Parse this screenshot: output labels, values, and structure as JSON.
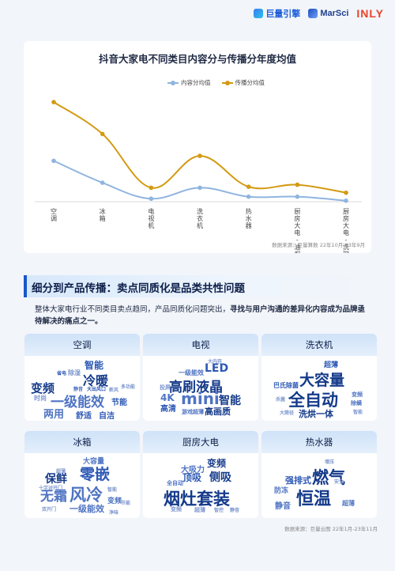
{
  "logos": {
    "juliang": "巨量引擎",
    "marsci": "MarSci",
    "inly": "INLY"
  },
  "chart_data": {
    "type": "line",
    "title": "抖音大家电不同类目内容分与传播分年度均值",
    "categories": [
      "空调",
      "冰箱",
      "电视机",
      "洗衣机",
      "热水器",
      "厨房大电-油烟机",
      "厨房大电-洗碗机"
    ],
    "category_labels": [
      [
        "空",
        "调"
      ],
      [
        "冰",
        "箱"
      ],
      [
        "电",
        "视",
        "机"
      ],
      [
        "洗",
        "衣",
        "机"
      ],
      [
        "热",
        "水",
        "器"
      ],
      [
        "厨",
        "房",
        "大",
        "电",
        "-",
        "油",
        "烟",
        "机"
      ],
      [
        "厨",
        "房",
        "大",
        "电",
        "-",
        "洗",
        "碗",
        "机"
      ]
    ],
    "series": [
      {
        "name": "内容分均值",
        "color": "#8fb4e0",
        "values": [
          41,
          19,
          3,
          14,
          5,
          5,
          1
        ]
      },
      {
        "name": "传播分均值",
        "color": "#d39a12",
        "values": [
          100,
          68,
          14,
          46,
          15,
          17,
          9
        ]
      }
    ],
    "ylim": [
      0,
      112
    ],
    "grid": false,
    "legend": "top-center",
    "source": "数据来源：巨量算数 22年10月-23年9月"
  },
  "section": {
    "title": "细分到产品传播：卖点同质化是品类共性问题",
    "desc_normal": "整体大家电行业不同类目卖点趋同，产品同质化问题突出，",
    "desc_bold": "寻找与用户沟通的差异化内容成为品牌亟待解决的痛点之一。"
  },
  "categories": [
    {
      "name": "空调",
      "words": [
        "智能",
        "冷暖",
        "变频",
        "一级能效",
        "两用",
        "舒适",
        "自洁",
        "节能",
        "除湿",
        "大出风口",
        "新风",
        "省电",
        "时尚",
        "静音",
        "多功能"
      ]
    },
    {
      "name": "电视",
      "words": [
        "LED",
        "一级能效",
        "高刷液晶",
        "mini",
        "4K",
        "智能",
        "高清",
        "游戏",
        "超薄",
        "高画质",
        "投屏",
        "大内存"
      ]
    },
    {
      "name": "洗衣机",
      "words": [
        "超薄",
        "大容量",
        "巴氏除菌",
        "全自动",
        "洗烘一体",
        "变频",
        "大筒径",
        "除螨",
        "智能",
        "杀菌"
      ]
    },
    {
      "name": "冰箱",
      "words": [
        "大容量",
        "保鲜",
        "零嵌",
        "无霜",
        "风冷",
        "一级能效",
        "十字对开门",
        "超薄",
        "智能",
        "变频",
        "节能",
        "双开门",
        "净味"
      ]
    },
    {
      "name": "厨房大电",
      "words": [
        "变频",
        "大吸力",
        "顶吸",
        "侧吸",
        "全自动",
        "烟灶套装",
        "变频",
        "超薄",
        "智控",
        "静音"
      ]
    },
    {
      "name": "热水器",
      "words": [
        "增压",
        "强排式",
        "燃气",
        "防冻",
        "恒温",
        "静音",
        "超薄",
        "安全"
      ]
    }
  ],
  "source2": "数据来源：巨量云图 22年1月-23年11月"
}
